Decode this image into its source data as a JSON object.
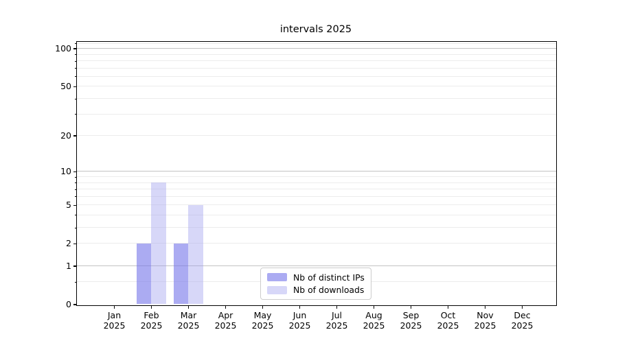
{
  "chart_data": {
    "type": "bar",
    "title": "intervals 2025",
    "categories": [
      {
        "month": "Jan",
        "year": "2025"
      },
      {
        "month": "Feb",
        "year": "2025"
      },
      {
        "month": "Mar",
        "year": "2025"
      },
      {
        "month": "Apr",
        "year": "2025"
      },
      {
        "month": "May",
        "year": "2025"
      },
      {
        "month": "Jun",
        "year": "2025"
      },
      {
        "month": "Jul",
        "year": "2025"
      },
      {
        "month": "Aug",
        "year": "2025"
      },
      {
        "month": "Sep",
        "year": "2025"
      },
      {
        "month": "Oct",
        "year": "2025"
      },
      {
        "month": "Nov",
        "year": "2025"
      },
      {
        "month": "Dec",
        "year": "2025"
      }
    ],
    "series": [
      {
        "name": "Nb of distinct IPs",
        "color": "#7878ea",
        "alpha": 0.62,
        "values": [
          0,
          2,
          2,
          0,
          0,
          0,
          0,
          0,
          0,
          0,
          0,
          0
        ]
      },
      {
        "name": "Nb of downloads",
        "color": "#9f9fee",
        "alpha": 0.42,
        "values": [
          0,
          8,
          5,
          0,
          0,
          0,
          0,
          0,
          0,
          0,
          0,
          0
        ]
      }
    ],
    "y_axis": {
      "scale": "log10(1+x)",
      "tick_labels": [
        "0",
        "1",
        "2",
        "5",
        "10",
        "20",
        "50",
        "100"
      ],
      "tick_values": [
        0,
        1,
        2,
        5,
        10,
        20,
        50,
        100
      ],
      "major_grid_values": [
        1,
        10,
        100
      ],
      "minor_grid_values": [
        0.5,
        2,
        3,
        4,
        5,
        6,
        7,
        8,
        9,
        20,
        30,
        40,
        50,
        60,
        70,
        80,
        90,
        110
      ]
    },
    "x_axis": {
      "tick_count": 12
    },
    "legend_entries": [
      "Nb of distinct IPs",
      "Nb of downloads"
    ],
    "colors": {
      "axis": "#000000",
      "major_grid": "#c2c2c2",
      "minor_grid": "#ececec",
      "text": "#000000",
      "legend_border": "#cccccc",
      "background": "#ffffff"
    }
  }
}
